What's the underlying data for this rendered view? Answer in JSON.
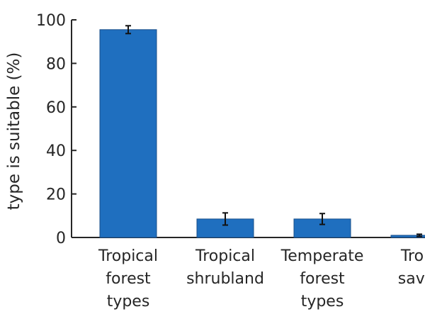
{
  "chart_data": {
    "type": "bar",
    "title": "",
    "xlabel": "",
    "ylabel": "type is suitable (%)",
    "ylim": [
      0,
      100
    ],
    "yticks": [
      0,
      20,
      40,
      60,
      80,
      100
    ],
    "grid": false,
    "bar_color": "#1f6fbf",
    "axis_color": "#262626",
    "categories": [
      {
        "lines": [
          "Tropical",
          "forest",
          "types"
        ]
      },
      {
        "lines": [
          "Tropical",
          "shrubland"
        ]
      },
      {
        "lines": [
          "Temperate",
          "forest",
          "types"
        ]
      },
      {
        "lines": [
          "Tropi",
          "savar"
        ]
      }
    ],
    "values": [
      95.5,
      8.5,
      8.5,
      1
    ],
    "errors": [
      1.8,
      2.8,
      2.5,
      0.5
    ]
  }
}
